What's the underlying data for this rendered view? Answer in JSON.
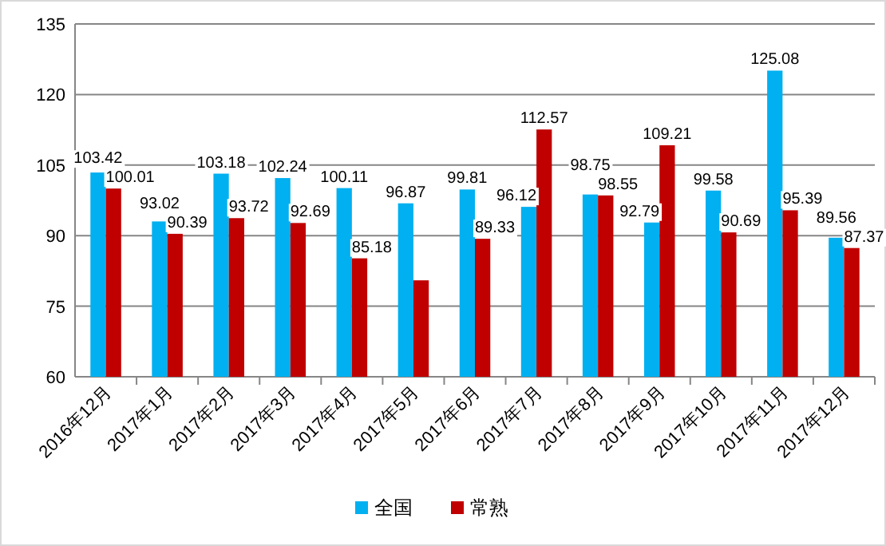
{
  "chart_data": {
    "type": "bar",
    "categories": [
      "2016年12月",
      "2017年1月",
      "2017年2月",
      "2017年3月",
      "2017年4月",
      "2017年5月",
      "2017年6月",
      "2017年7月",
      "2017年8月",
      "2017年9月",
      "2017年10月",
      "2017年11月",
      "2017年12月"
    ],
    "series": [
      {
        "name": "全国",
        "color": "#00b0f0",
        "values": [
          103.42,
          93.02,
          103.18,
          102.24,
          100.11,
          96.87,
          99.81,
          96.12,
          98.75,
          92.79,
          99.58,
          125.08,
          89.56
        ],
        "value_labels": [
          "103.42",
          "93.02",
          "103.18",
          "102.24",
          "100.11",
          "96.87",
          "99.81",
          "96.12",
          "98.75",
          "92.79",
          "99.58",
          "125.08",
          "89.56"
        ]
      },
      {
        "name": "常熟",
        "color": "#c00000",
        "values": [
          100.01,
          90.39,
          93.72,
          92.69,
          85.18,
          80.5,
          89.33,
          112.57,
          98.55,
          109.21,
          90.69,
          95.39,
          87.37
        ],
        "value_labels": [
          "100.01",
          "90.39",
          "93.72",
          "92.69",
          "85.18",
          null,
          "89.33",
          "112.57",
          "98.55",
          "109.21",
          "90.69",
          "95.39",
          "87.37"
        ]
      }
    ],
    "ylim": [
      60,
      135
    ],
    "yticks": [
      60,
      75,
      90,
      105,
      120,
      135
    ],
    "grid": "y",
    "legend": "bottom"
  }
}
